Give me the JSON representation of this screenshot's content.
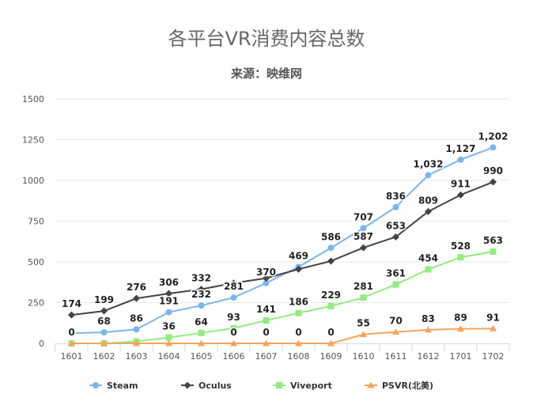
{
  "chart_data": {
    "type": "line",
    "title": "各平台VR消费内容总数",
    "subtitle": "来源：映维网",
    "xlabel": "",
    "ylabel": "",
    "categories": [
      "1601",
      "1602",
      "1603",
      "1604",
      "1605",
      "1606",
      "1607",
      "1608",
      "1609",
      "1610",
      "1611",
      "1612",
      "1701",
      "1702"
    ],
    "ylim": [
      0,
      1500
    ],
    "yticks": [
      0,
      250,
      500,
      750,
      1000,
      1250,
      1500
    ],
    "ytick_labels": [
      "0",
      "250",
      "500",
      "750",
      "1000",
      "1250",
      "1500"
    ],
    "grid": true,
    "legend": "bottom",
    "series": [
      {
        "name": "Steam",
        "color": "#7cb5ec",
        "marker": "circle",
        "values": [
          62,
          68,
          86,
          191,
          232,
          281,
          370,
          469,
          586,
          707,
          836,
          1032,
          1127,
          1202
        ],
        "labels": [
          "",
          "68",
          "86",
          "191",
          "232",
          "281",
          "370",
          "469",
          "586",
          "707",
          "836",
          "1,032",
          "1,127",
          "1,202"
        ]
      },
      {
        "name": "Oculus",
        "color": "#434348",
        "marker": "diamond",
        "values": [
          174,
          199,
          276,
          306,
          332,
          370,
          400,
          455,
          505,
          587,
          653,
          809,
          911,
          990
        ],
        "labels": [
          "174",
          "199",
          "276",
          "306",
          "332",
          "",
          "",
          "",
          "",
          "587",
          "653",
          "809",
          "911",
          "990"
        ]
      },
      {
        "name": "Viveport",
        "color": "#90ed7d",
        "marker": "square",
        "values": [
          0,
          0,
          12,
          36,
          64,
          93,
          141,
          186,
          229,
          281,
          361,
          454,
          528,
          563
        ],
        "labels": [
          "0",
          "",
          "",
          "36",
          "64",
          "93",
          "141",
          "186",
          "229",
          "281",
          "361",
          "454",
          "528",
          "563"
        ]
      },
      {
        "name": "PSVR(北美)",
        "color": "#f7a35c",
        "marker": "triangle",
        "values": [
          0,
          0,
          0,
          0,
          0,
          0,
          0,
          0,
          0,
          55,
          70,
          83,
          89,
          91
        ],
        "labels": [
          "",
          "",
          "",
          "",
          "",
          "0",
          "0",
          "0",
          "0",
          "55",
          "70",
          "83",
          "89",
          "91"
        ]
      }
    ]
  }
}
